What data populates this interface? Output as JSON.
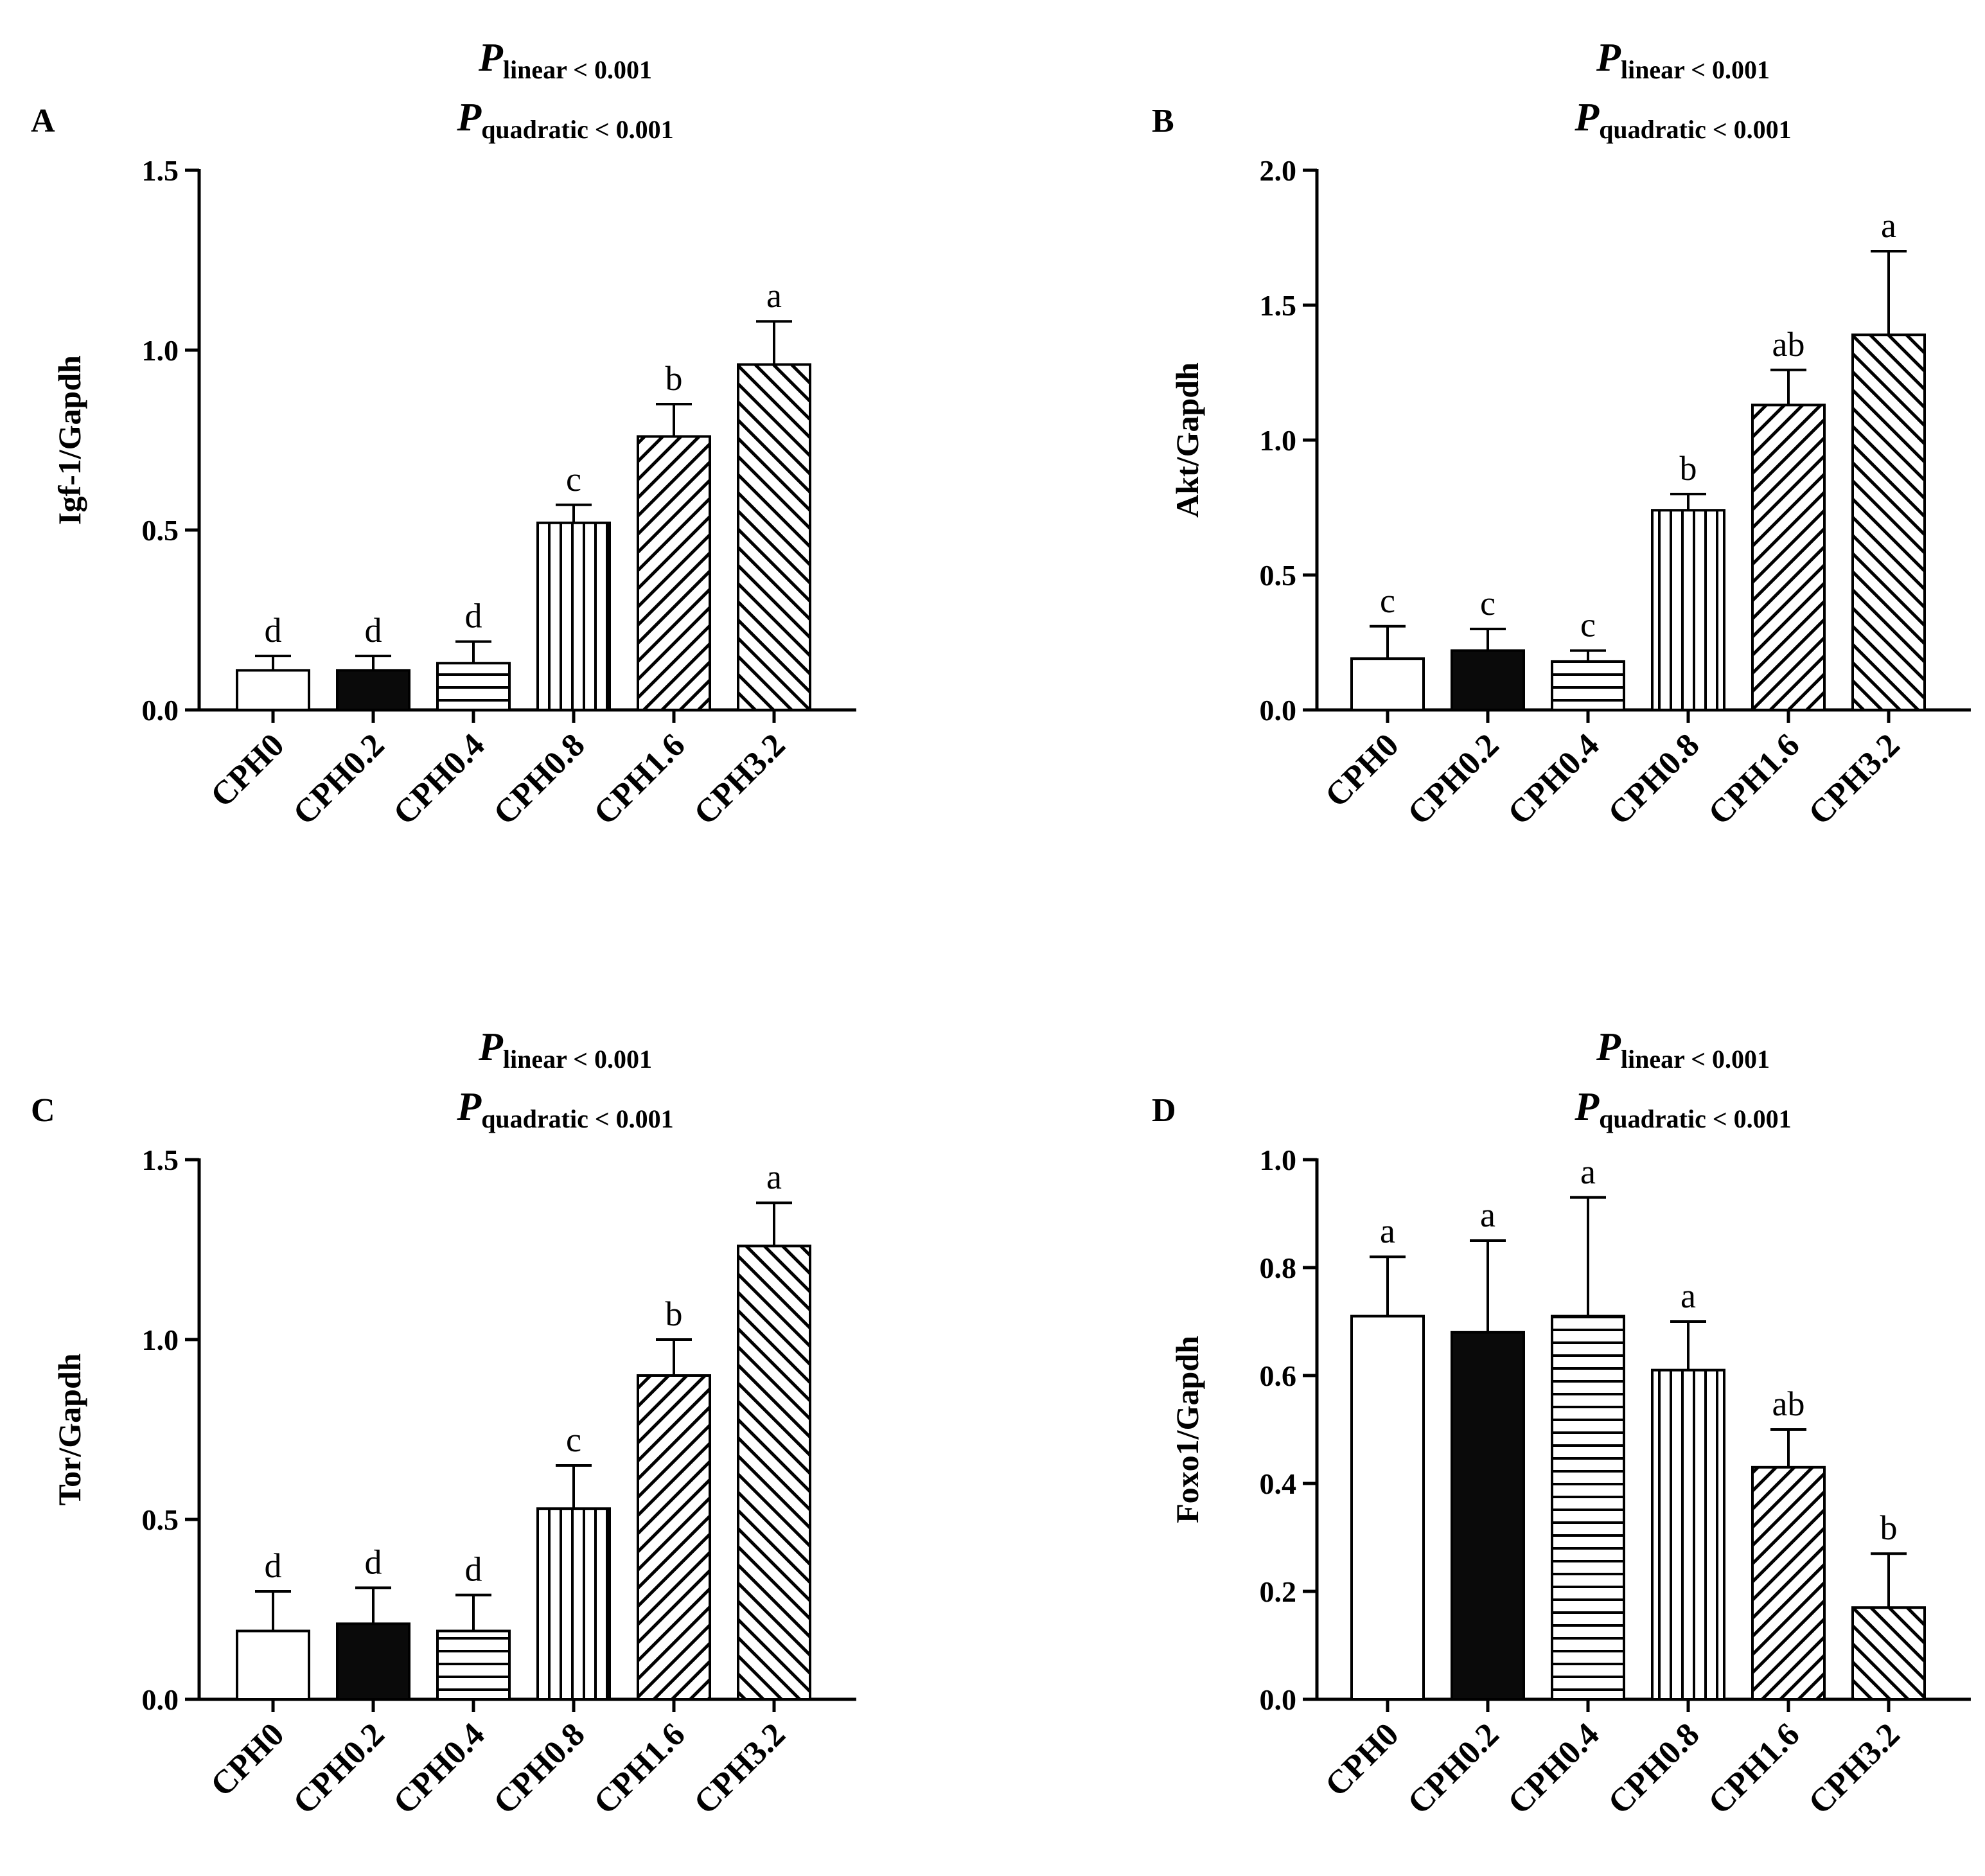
{
  "figure": {
    "p_main": "P",
    "p_linear_sub": "linear",
    "p_linear_value": " < 0.001",
    "p_quadratic_sub": "quadratic",
    "p_quadratic_value": " < 0.001"
  },
  "chart_data": [
    {
      "panel": "A",
      "type": "bar",
      "ylabel": "Igf-1/Gapdh",
      "xlabel": "",
      "ylim": [
        0,
        1.5
      ],
      "yticks": [
        "0.0",
        "0.5",
        "1.0",
        "1.5"
      ],
      "categories": [
        "CPH0",
        "CPH0.2",
        "CPH0.4",
        "CPH0.8",
        "CPH1.6",
        "CPH3.2"
      ],
      "values": [
        0.11,
        0.11,
        0.13,
        0.52,
        0.76,
        0.96
      ],
      "errors": [
        0.04,
        0.04,
        0.06,
        0.05,
        0.09,
        0.12
      ],
      "sig_letters": [
        "d",
        "d",
        "d",
        "c",
        "b",
        "a"
      ],
      "patterns": [
        "white",
        "black",
        "horizontal",
        "vertical",
        "diagonal-up",
        "diagonal-down"
      ]
    },
    {
      "panel": "B",
      "type": "bar",
      "ylabel": "Akt/Gapdh",
      "xlabel": "",
      "ylim": [
        0,
        2.0
      ],
      "yticks": [
        "0.0",
        "0.5",
        "1.0",
        "1.5",
        "2.0"
      ],
      "categories": [
        "CPH0",
        "CPH0.2",
        "CPH0.4",
        "CPH0.8",
        "CPH1.6",
        "CPH3.2"
      ],
      "values": [
        0.19,
        0.22,
        0.18,
        0.74,
        1.13,
        1.39
      ],
      "errors": [
        0.12,
        0.08,
        0.04,
        0.06,
        0.13,
        0.31
      ],
      "sig_letters": [
        "c",
        "c",
        "c",
        "b",
        "ab",
        "a"
      ],
      "patterns": [
        "white",
        "black",
        "horizontal",
        "vertical",
        "diagonal-up",
        "diagonal-down"
      ]
    },
    {
      "panel": "C",
      "type": "bar",
      "ylabel": "Tor/Gapdh",
      "xlabel": "",
      "ylim": [
        0,
        1.5
      ],
      "yticks": [
        "0.0",
        "0.5",
        "1.0",
        "1.5"
      ],
      "categories": [
        "CPH0",
        "CPH0.2",
        "CPH0.4",
        "CPH0.8",
        "CPH1.6",
        "CPH3.2"
      ],
      "values": [
        0.19,
        0.21,
        0.19,
        0.53,
        0.9,
        1.26
      ],
      "errors": [
        0.11,
        0.1,
        0.1,
        0.12,
        0.1,
        0.12
      ],
      "sig_letters": [
        "d",
        "d",
        "d",
        "c",
        "b",
        "a"
      ],
      "patterns": [
        "white",
        "black",
        "horizontal",
        "vertical",
        "diagonal-up",
        "diagonal-down"
      ]
    },
    {
      "panel": "D",
      "type": "bar",
      "ylabel": "Foxo1/Gapdh",
      "xlabel": "",
      "ylim": [
        0,
        1.0
      ],
      "yticks": [
        "0.0",
        "0.2",
        "0.4",
        "0.6",
        "0.8",
        "1.0"
      ],
      "categories": [
        "CPH0",
        "CPH0.2",
        "CPH0.4",
        "CPH0.8",
        "CPH1.6",
        "CPH3.2"
      ],
      "values": [
        0.71,
        0.68,
        0.71,
        0.61,
        0.43,
        0.17
      ],
      "errors": [
        0.11,
        0.17,
        0.22,
        0.09,
        0.07,
        0.1
      ],
      "sig_letters": [
        "a",
        "a",
        "a",
        "a",
        "ab",
        "b"
      ],
      "patterns": [
        "white",
        "black",
        "horizontal",
        "vertical",
        "diagonal-up",
        "diagonal-down"
      ]
    }
  ]
}
